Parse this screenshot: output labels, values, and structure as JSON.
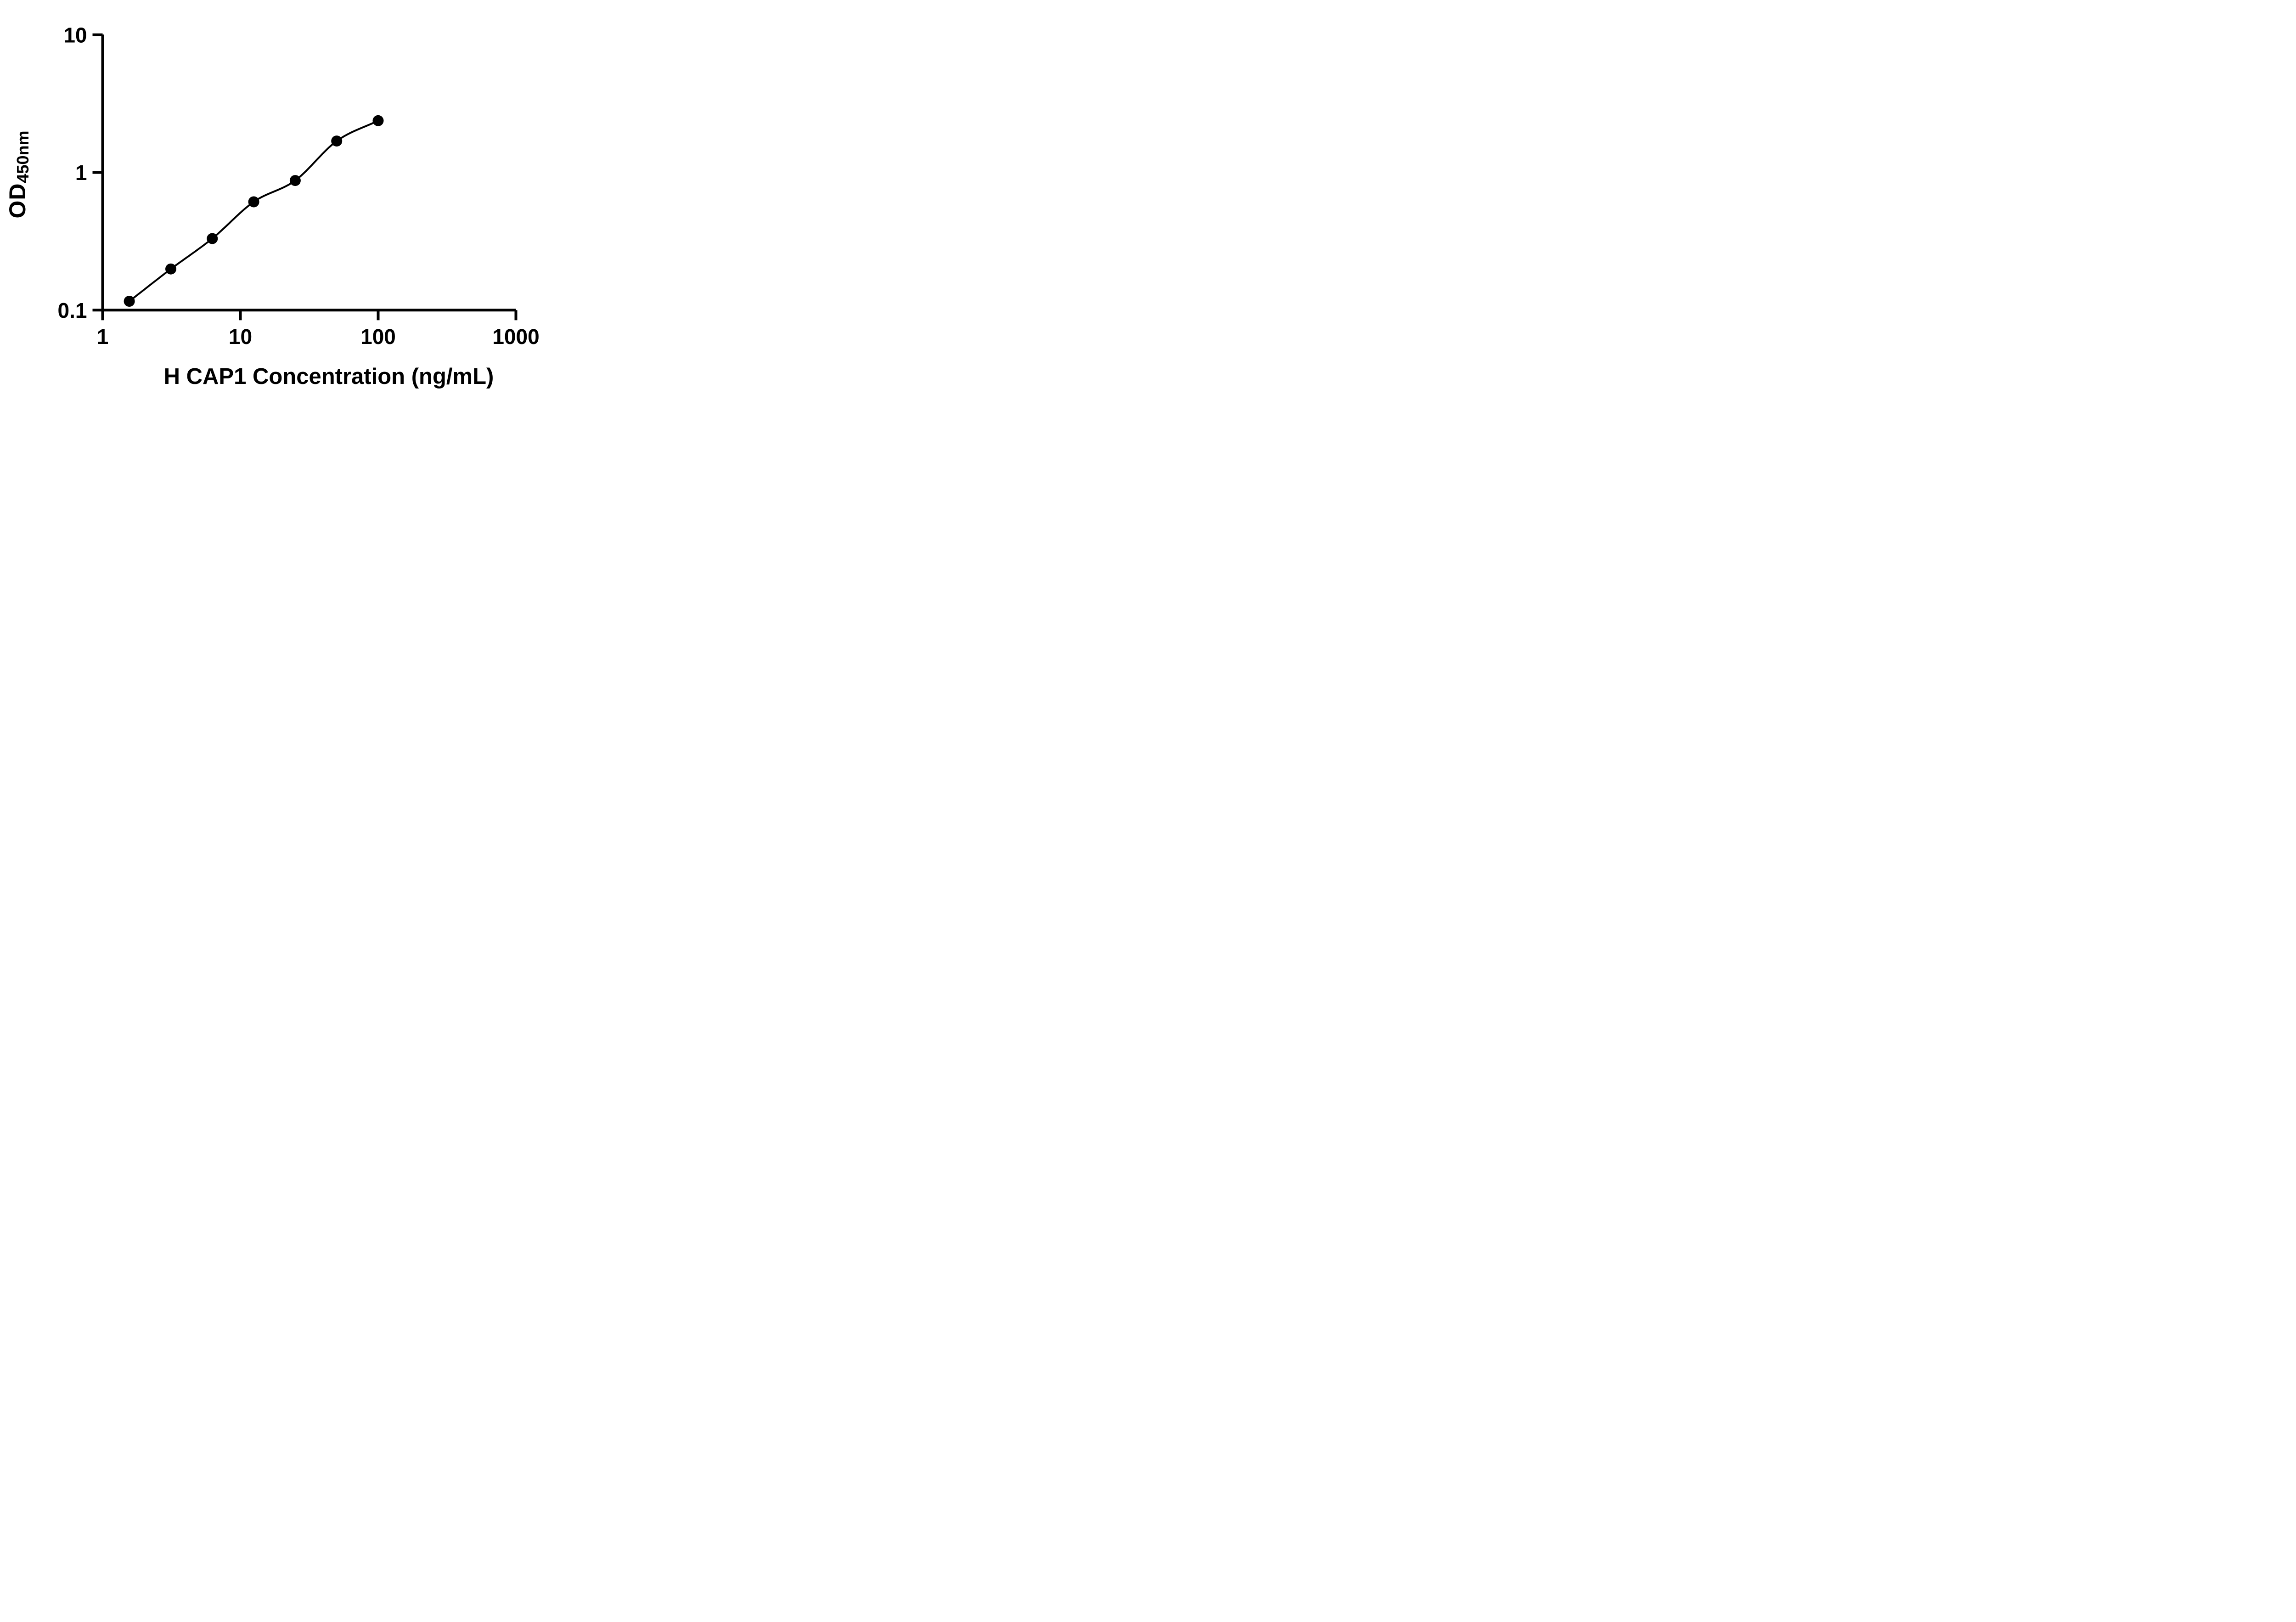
{
  "figure": {
    "background_color": "#ffffff",
    "ink_color": "#000000"
  },
  "chart_data": {
    "type": "scatter",
    "subtype": "elisa-standard-curve",
    "title": "",
    "xlabel": "H CAP1 Concentration (ng/mL)",
    "ylabel": {
      "main": "OD",
      "subscript": "450nm"
    },
    "x_scale": "log10",
    "y_scale": "log10",
    "xlim": [
      1,
      1000
    ],
    "ylim": [
      0.1,
      10
    ],
    "grid": false,
    "legend": null,
    "x_ticks": [
      {
        "value": 1,
        "label": "1"
      },
      {
        "value": 10,
        "label": "10"
      },
      {
        "value": 100,
        "label": "100"
      },
      {
        "value": 1000,
        "label": "1000"
      }
    ],
    "y_ticks": [
      {
        "value": 0.1,
        "label": "0.1"
      },
      {
        "value": 1,
        "label": "1"
      },
      {
        "value": 10,
        "label": "10"
      }
    ],
    "series": [
      {
        "name": "standard-curve",
        "marker": "filled-circle",
        "marker_color": "#000000",
        "line": "smooth-fit",
        "line_color": "#000000",
        "points": [
          {
            "x": 1.5625,
            "y": 0.116
          },
          {
            "x": 3.125,
            "y": 0.199
          },
          {
            "x": 6.25,
            "y": 0.331
          },
          {
            "x": 12.5,
            "y": 0.612
          },
          {
            "x": 25,
            "y": 0.874
          },
          {
            "x": 50,
            "y": 1.692
          },
          {
            "x": 100,
            "y": 2.378
          }
        ]
      }
    ]
  }
}
